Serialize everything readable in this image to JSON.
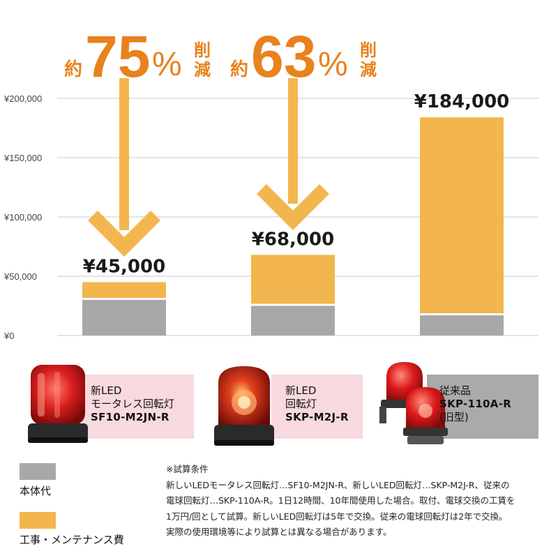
{
  "chart_data": {
    "type": "bar",
    "stacked": true,
    "categories": [
      "SF10-M2JN-R",
      "SKP-M2J-R",
      "SKP-110A-R"
    ],
    "series": [
      {
        "name": "本体代",
        "color": "#a8a8a8",
        "values": [
          30000,
          25000,
          17000
        ]
      },
      {
        "name": "工事・メンテナンス費",
        "color": "#f3b64e",
        "values": [
          15000,
          43000,
          167000
        ]
      }
    ],
    "totals": [
      45000,
      68000,
      184000
    ],
    "total_labels": [
      "¥45,000",
      "¥68,000",
      "¥184,000"
    ],
    "ylim": [
      0,
      200000
    ],
    "yticks": [
      0,
      50000,
      100000,
      150000,
      200000
    ],
    "ytick_labels": [
      "¥0",
      "¥50,000",
      "¥100,000",
      "¥150,000",
      "¥200,000"
    ],
    "grid": true,
    "reductions": [
      {
        "prefix": "約",
        "number": "75",
        "percent": "%",
        "suffix": "削減"
      },
      {
        "prefix": "約",
        "number": "63",
        "percent": "%",
        "suffix": "削減"
      }
    ]
  },
  "colors": {
    "accent": "#e8821c",
    "arrow": "#f3b64e",
    "grid": "#c8c8c8",
    "card_pink": "#f7d9de",
    "card_gray": "#aaaaaa"
  },
  "products": [
    {
      "lines": [
        "新LED",
        "モータレス回転灯"
      ],
      "model": "SF10-M2JN-R",
      "icon": "led-rotating-light-icon"
    },
    {
      "lines": [
        "新LED",
        "回転灯"
      ],
      "model": "SKP-M2J-R",
      "icon": "led-rotating-light-icon"
    },
    {
      "lines": [
        "従来品"
      ],
      "model": "SKP-110A-R",
      "sub": "(旧型)",
      "icon": "bulb-rotating-light-icon"
    }
  ],
  "legend": [
    {
      "label": "本体代",
      "color": "#a8a8a8"
    },
    {
      "label": "工事・メンテナンス費",
      "color": "#f3b64e"
    }
  ],
  "notes": {
    "title": "※試算条件",
    "lines": [
      "新しいLEDモータレス回転灯…SF10-M2JN-R、新しいLED回転灯…SKP-M2J-R、従来の",
      "電球回転灯…SKP-110A-R。1日12時間、10年間使用した場合。取付、電球交換の工賃を",
      "1万円/回として試算。新しいLED回転灯は5年で交換。従来の電球回転灯は2年で交換。",
      "実際の使用環境等により試算とは異なる場合があります。"
    ]
  }
}
